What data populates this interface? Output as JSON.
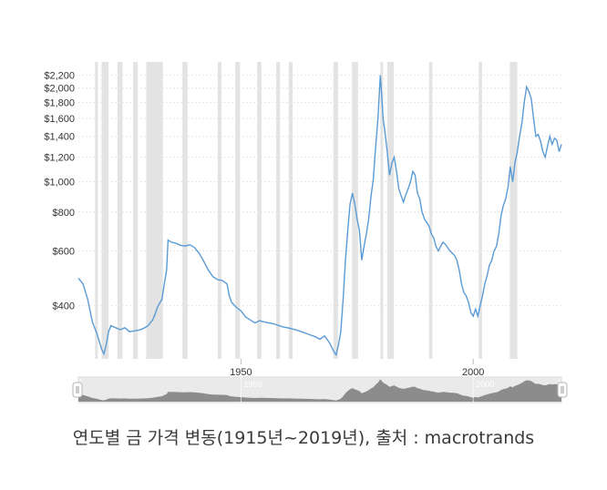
{
  "caption": "연도별 금 가격 변동(1915년~2019년), 출처 : macrotrands",
  "colors": {
    "line": "#5b9bd5",
    "recession": "#e3e3e3",
    "grid": "#e6e6e6",
    "navigator_fill": "#8c8c8c",
    "navigator_bg": "#f0f0f0"
  },
  "chart_data": {
    "type": "line",
    "scale": "log",
    "xlabel": "",
    "ylabel": "",
    "xlim": [
      1915,
      2019
    ],
    "ylim": [
      270,
      2300
    ],
    "x_ticks": [
      "1950",
      "2000"
    ],
    "y_ticks": [
      {
        "value": 2200,
        "label": "$2,200"
      },
      {
        "value": 2000,
        "label": "$2,000"
      },
      {
        "value": 1800,
        "label": "$1,800"
      },
      {
        "value": 1600,
        "label": "$1,600"
      },
      {
        "value": 1400,
        "label": "$1,400"
      },
      {
        "value": 1200,
        "label": "$1,200"
      },
      {
        "value": 1000,
        "label": "$1,000"
      },
      {
        "value": 800,
        "label": "$800"
      },
      {
        "value": 600,
        "label": "$600"
      },
      {
        "value": 400,
        "label": "$400"
      }
    ],
    "recessions": [
      [
        1918.6,
        1919.2
      ],
      [
        1920.0,
        1921.5
      ],
      [
        1923.4,
        1924.5
      ],
      [
        1926.8,
        1927.8
      ],
      [
        1929.6,
        1933.2
      ],
      [
        1937.4,
        1938.5
      ],
      [
        1945.0,
        1945.8
      ],
      [
        1948.8,
        1949.8
      ],
      [
        1953.5,
        1954.4
      ],
      [
        1957.6,
        1958.4
      ],
      [
        1960.3,
        1961.1
      ],
      [
        1969.9,
        1970.9
      ],
      [
        1973.9,
        1975.2
      ],
      [
        1980.0,
        1980.6
      ],
      [
        1981.5,
        1982.9
      ],
      [
        1990.5,
        1991.2
      ],
      [
        2001.2,
        2001.9
      ],
      [
        2007.9,
        2009.5
      ]
    ],
    "series": [
      {
        "values": [
          [
            1915.0,
            490
          ],
          [
            1916.0,
            470
          ],
          [
            1917.0,
            420
          ],
          [
            1918.0,
            355
          ],
          [
            1919.0,
            325
          ],
          [
            1920.0,
            290
          ],
          [
            1920.5,
            280
          ],
          [
            1921.0,
            300
          ],
          [
            1921.5,
            330
          ],
          [
            1922.0,
            345
          ],
          [
            1923.0,
            340
          ],
          [
            1924.0,
            335
          ],
          [
            1925.0,
            340
          ],
          [
            1926.0,
            330
          ],
          [
            1927.0,
            332
          ],
          [
            1928.0,
            334
          ],
          [
            1929.0,
            338
          ],
          [
            1930.0,
            345
          ],
          [
            1931.0,
            360
          ],
          [
            1931.5,
            375
          ],
          [
            1932.0,
            395
          ],
          [
            1933.0,
            420
          ],
          [
            1933.5,
            470
          ],
          [
            1934.0,
            520
          ],
          [
            1934.3,
            650
          ],
          [
            1935.0,
            640
          ],
          [
            1936.0,
            635
          ],
          [
            1937.0,
            625
          ],
          [
            1938.0,
            622
          ],
          [
            1939.0,
            628
          ],
          [
            1940.0,
            615
          ],
          [
            1941.0,
            590
          ],
          [
            1942.0,
            555
          ],
          [
            1943.0,
            520
          ],
          [
            1944.0,
            495
          ],
          [
            1945.0,
            485
          ],
          [
            1946.0,
            482
          ],
          [
            1947.0,
            470
          ],
          [
            1947.5,
            430
          ],
          [
            1948.0,
            410
          ],
          [
            1949.0,
            395
          ],
          [
            1950.0,
            385
          ],
          [
            1951.0,
            368
          ],
          [
            1952.0,
            360
          ],
          [
            1953.0,
            352
          ],
          [
            1954.0,
            358
          ],
          [
            1955.0,
            355
          ],
          [
            1956.0,
            352
          ],
          [
            1957.0,
            350
          ],
          [
            1958.0,
            346
          ],
          [
            1959.0,
            342
          ],
          [
            1960.0,
            340
          ],
          [
            1961.0,
            337
          ],
          [
            1962.0,
            334
          ],
          [
            1963.0,
            330
          ],
          [
            1964.0,
            326
          ],
          [
            1965.0,
            322
          ],
          [
            1966.0,
            318
          ],
          [
            1967.0,
            312
          ],
          [
            1968.0,
            320
          ],
          [
            1969.0,
            305
          ],
          [
            1970.0,
            285
          ],
          [
            1970.5,
            278
          ],
          [
            1971.0,
            300
          ],
          [
            1971.5,
            330
          ],
          [
            1972.0,
            420
          ],
          [
            1972.5,
            560
          ],
          [
            1973.0,
            700
          ],
          [
            1973.5,
            850
          ],
          [
            1974.0,
            920
          ],
          [
            1974.5,
            850
          ],
          [
            1975.0,
            760
          ],
          [
            1975.5,
            700
          ],
          [
            1976.0,
            560
          ],
          [
            1976.5,
            620
          ],
          [
            1977.0,
            680
          ],
          [
            1977.5,
            760
          ],
          [
            1978.0,
            900
          ],
          [
            1978.5,
            1020
          ],
          [
            1979.0,
            1300
          ],
          [
            1979.5,
            1600
          ],
          [
            1980.0,
            2200
          ],
          [
            1980.3,
            1900
          ],
          [
            1980.6,
            1600
          ],
          [
            1981.0,
            1450
          ],
          [
            1981.5,
            1250
          ],
          [
            1982.0,
            1050
          ],
          [
            1982.5,
            1150
          ],
          [
            1983.0,
            1200
          ],
          [
            1983.5,
            1080
          ],
          [
            1984.0,
            950
          ],
          [
            1984.5,
            900
          ],
          [
            1985.0,
            860
          ],
          [
            1985.5,
            910
          ],
          [
            1986.0,
            950
          ],
          [
            1986.5,
            1000
          ],
          [
            1987.0,
            1080
          ],
          [
            1987.5,
            1050
          ],
          [
            1988.0,
            920
          ],
          [
            1988.5,
            880
          ],
          [
            1989.0,
            800
          ],
          [
            1989.5,
            760
          ],
          [
            1990.0,
            740
          ],
          [
            1990.5,
            720
          ],
          [
            1991.0,
            680
          ],
          [
            1991.5,
            660
          ],
          [
            1992.0,
            620
          ],
          [
            1992.5,
            600
          ],
          [
            1993.0,
            620
          ],
          [
            1993.5,
            640
          ],
          [
            1994.0,
            630
          ],
          [
            1995.0,
            600
          ],
          [
            1996.0,
            580
          ],
          [
            1996.5,
            560
          ],
          [
            1997.0,
            520
          ],
          [
            1997.5,
            470
          ],
          [
            1998.0,
            440
          ],
          [
            1998.5,
            430
          ],
          [
            1999.0,
            410
          ],
          [
            1999.5,
            380
          ],
          [
            2000.0,
            370
          ],
          [
            2000.5,
            390
          ],
          [
            2001.0,
            370
          ],
          [
            2001.5,
            400
          ],
          [
            2002.0,
            430
          ],
          [
            2002.5,
            470
          ],
          [
            2003.0,
            500
          ],
          [
            2003.5,
            540
          ],
          [
            2004.0,
            560
          ],
          [
            2004.5,
            600
          ],
          [
            2005.0,
            620
          ],
          [
            2005.5,
            680
          ],
          [
            2006.0,
            780
          ],
          [
            2006.5,
            840
          ],
          [
            2007.0,
            880
          ],
          [
            2007.5,
            960
          ],
          [
            2008.0,
            1120
          ],
          [
            2008.5,
            1000
          ],
          [
            2009.0,
            1150
          ],
          [
            2009.5,
            1250
          ],
          [
            2010.0,
            1400
          ],
          [
            2010.5,
            1550
          ],
          [
            2011.0,
            1800
          ],
          [
            2011.5,
            2020
          ],
          [
            2012.0,
            1950
          ],
          [
            2012.5,
            1850
          ],
          [
            2013.0,
            1600
          ],
          [
            2013.5,
            1400
          ],
          [
            2014.0,
            1420
          ],
          [
            2014.5,
            1350
          ],
          [
            2015.0,
            1250
          ],
          [
            2015.5,
            1200
          ],
          [
            2016.0,
            1300
          ],
          [
            2016.5,
            1400
          ],
          [
            2017.0,
            1320
          ],
          [
            2017.5,
            1380
          ],
          [
            2018.0,
            1360
          ],
          [
            2018.5,
            1250
          ],
          [
            2019.0,
            1320
          ]
        ]
      }
    ],
    "navigator": {
      "x_ticks": [
        "1950",
        "2000"
      ]
    }
  }
}
